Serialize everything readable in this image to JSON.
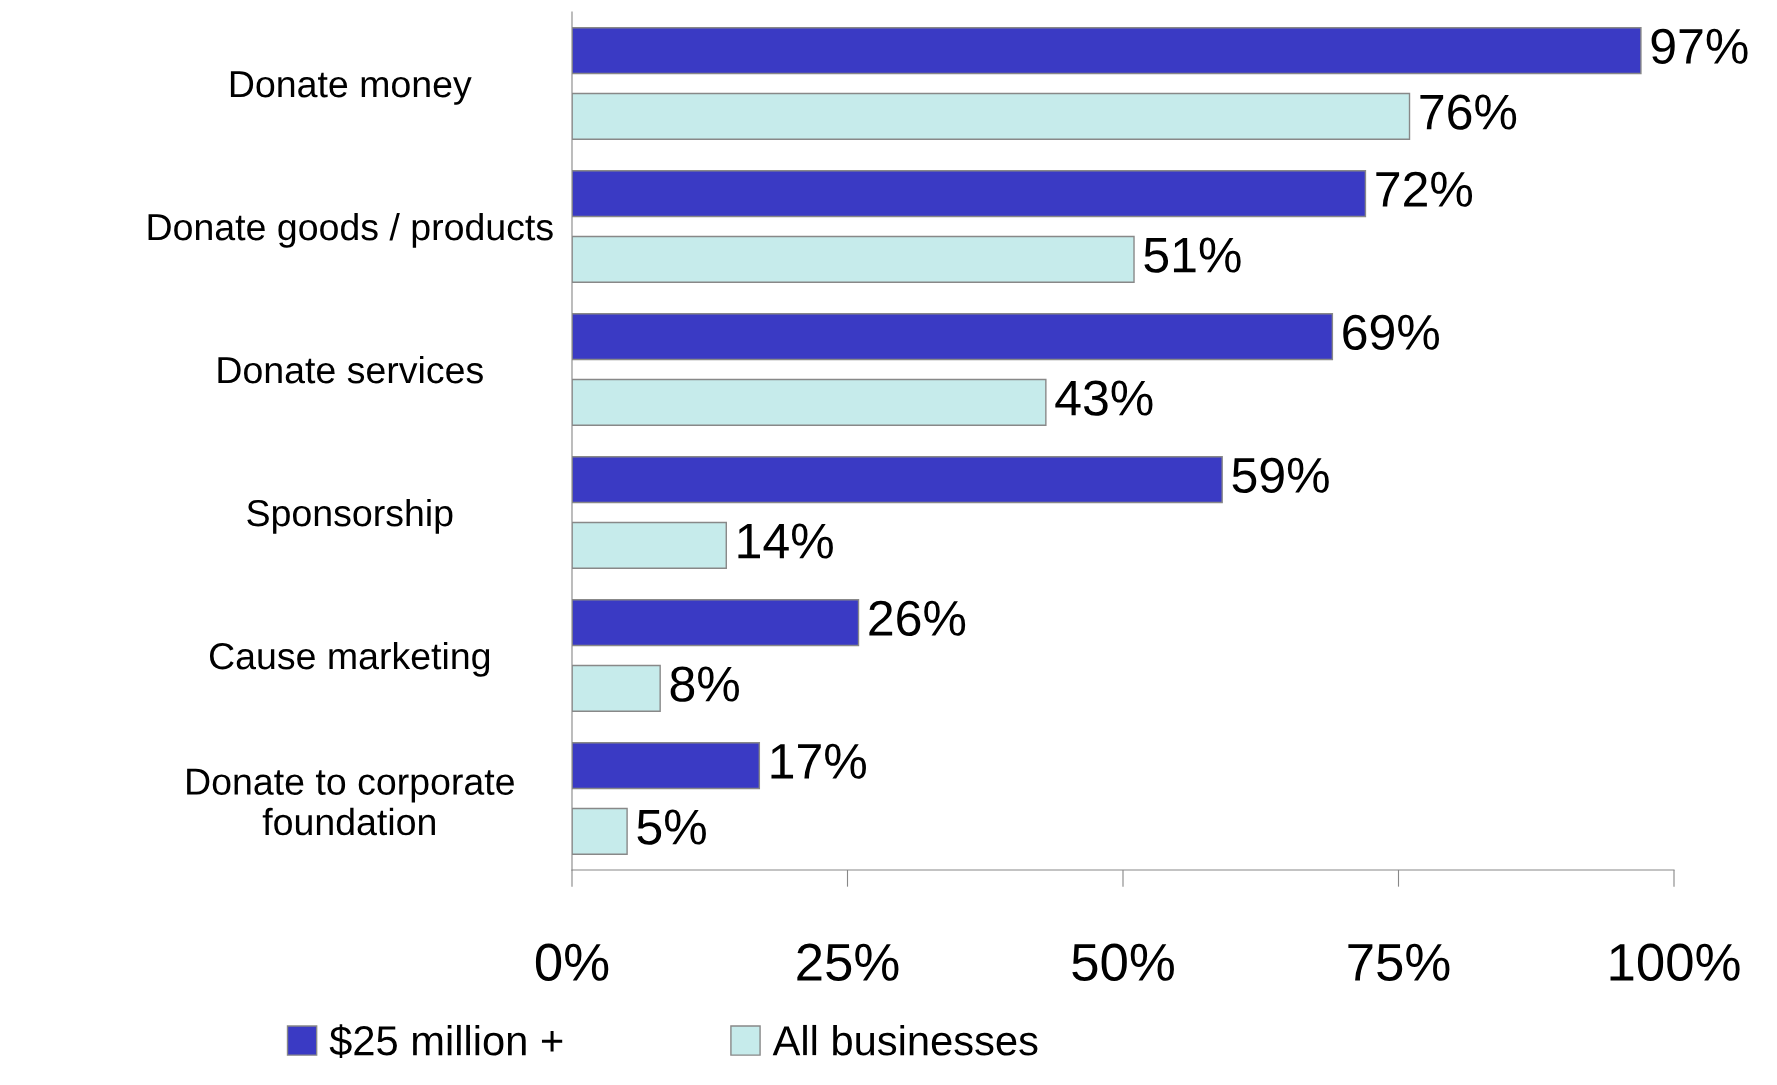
{
  "chart_data": {
    "type": "bar",
    "orientation": "horizontal",
    "categories": [
      "Donate money",
      "Donate goods / products",
      "Donate services",
      "Sponsorship",
      "Cause marketing",
      "Donate to corporate\nfoundation"
    ],
    "series": [
      {
        "name": "$25 million +",
        "color": "#3a3ac4",
        "values": [
          97,
          72,
          69,
          59,
          26,
          17
        ],
        "value_labels": [
          "97%",
          "72%",
          "69%",
          "59%",
          "26%",
          "17%"
        ]
      },
      {
        "name": "All businesses",
        "color": "#c6ebeb",
        "values": [
          76,
          51,
          43,
          14,
          8,
          5
        ],
        "value_labels": [
          "76%",
          "51%",
          "43%",
          "14%",
          "8%",
          "5%"
        ]
      }
    ],
    "xlim": [
      0,
      100
    ],
    "xticks": [
      {
        "value": 0,
        "label": "0%"
      },
      {
        "value": 25,
        "label": "25%"
      },
      {
        "value": 50,
        "label": "50%"
      },
      {
        "value": 75,
        "label": "75%"
      },
      {
        "value": 100,
        "label": "100%"
      }
    ],
    "legend": "bottom",
    "grid": false
  }
}
